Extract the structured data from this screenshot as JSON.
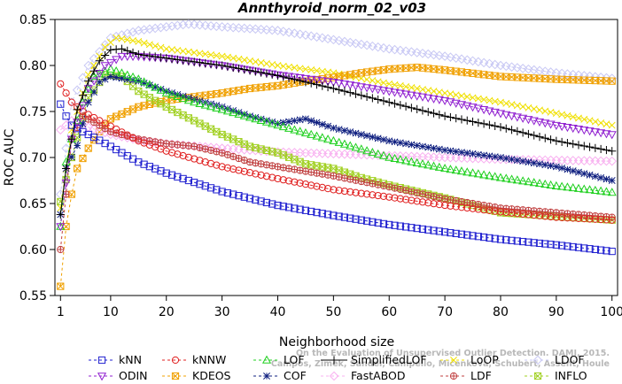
{
  "chart_data": {
    "type": "line",
    "title": "Annthyroid_norm_02_v03",
    "xlabel": "Neighborhood size",
    "ylabel": "ROC AUC",
    "xlim": [
      0,
      101
    ],
    "ylim": [
      0.55,
      0.85
    ],
    "xticks": [
      "1",
      "10",
      "20",
      "30",
      "40",
      "50",
      "60",
      "70",
      "80",
      "90",
      "100"
    ],
    "yticks": [
      "0.55",
      "0.60",
      "0.65",
      "0.70",
      "0.75",
      "0.80",
      "0.85"
    ],
    "grid": false,
    "legend_position": "bottom",
    "watermark": [
      "Campos, Zimek, Sander, Campello, Micenková, Schubert, Assent, Houle",
      "On the Evaluation of Unsupervised Outlier Detection. DAMI, 2015."
    ],
    "series": [
      {
        "name": "kNN",
        "color": "#2020d0",
        "marker": "square",
        "dash": "3,3",
        "points": [
          [
            1,
            0.758
          ],
          [
            2,
            0.745
          ],
          [
            3,
            0.735
          ],
          [
            5,
            0.728
          ],
          [
            7,
            0.722
          ],
          [
            10,
            0.712
          ],
          [
            15,
            0.695
          ],
          [
            20,
            0.683
          ],
          [
            30,
            0.663
          ],
          [
            40,
            0.648
          ],
          [
            50,
            0.637
          ],
          [
            60,
            0.627
          ],
          [
            70,
            0.619
          ],
          [
            80,
            0.611
          ],
          [
            90,
            0.605
          ],
          [
            100,
            0.598
          ]
        ]
      },
      {
        "name": "kNNW",
        "color": "#e02020",
        "marker": "circle",
        "dash": "3,3",
        "points": [
          [
            1,
            0.78
          ],
          [
            2,
            0.77
          ],
          [
            3,
            0.76
          ],
          [
            5,
            0.75
          ],
          [
            8,
            0.74
          ],
          [
            10,
            0.734
          ],
          [
            15,
            0.718
          ],
          [
            20,
            0.707
          ],
          [
            30,
            0.69
          ],
          [
            40,
            0.677
          ],
          [
            50,
            0.665
          ],
          [
            60,
            0.657
          ],
          [
            70,
            0.648
          ],
          [
            80,
            0.641
          ],
          [
            90,
            0.635
          ],
          [
            100,
            0.632
          ]
        ]
      },
      {
        "name": "LOF",
        "color": "#20d020",
        "marker": "triangle",
        "dash": "3,3",
        "points": [
          [
            1,
            0.625
          ],
          [
            2,
            0.695
          ],
          [
            3,
            0.72
          ],
          [
            5,
            0.76
          ],
          [
            7,
            0.788
          ],
          [
            10,
            0.796
          ],
          [
            15,
            0.785
          ],
          [
            20,
            0.77
          ],
          [
            25,
            0.76
          ],
          [
            30,
            0.752
          ],
          [
            40,
            0.735
          ],
          [
            50,
            0.718
          ],
          [
            60,
            0.7
          ],
          [
            70,
            0.688
          ],
          [
            80,
            0.678
          ],
          [
            90,
            0.669
          ],
          [
            100,
            0.662
          ]
        ]
      },
      {
        "name": "SimplifiedLOF",
        "color": "#000000",
        "marker": "plus",
        "dash": "",
        "points": [
          [
            1,
            0.638
          ],
          [
            2,
            0.688
          ],
          [
            4,
            0.752
          ],
          [
            6,
            0.783
          ],
          [
            8,
            0.805
          ],
          [
            10,
            0.817
          ],
          [
            12,
            0.818
          ],
          [
            15,
            0.812
          ],
          [
            20,
            0.808
          ],
          [
            30,
            0.8
          ],
          [
            40,
            0.789
          ],
          [
            50,
            0.775
          ],
          [
            60,
            0.76
          ],
          [
            70,
            0.745
          ],
          [
            80,
            0.733
          ],
          [
            90,
            0.718
          ],
          [
            100,
            0.707
          ]
        ]
      },
      {
        "name": "LoOP",
        "color": "#f0e000",
        "marker": "cross",
        "dash": "3,3",
        "points": [
          [
            1,
            0.645
          ],
          [
            3,
            0.73
          ],
          [
            6,
            0.79
          ],
          [
            9,
            0.82
          ],
          [
            11,
            0.83
          ],
          [
            15,
            0.826
          ],
          [
            20,
            0.818
          ],
          [
            30,
            0.81
          ],
          [
            40,
            0.8
          ],
          [
            50,
            0.792
          ],
          [
            60,
            0.78
          ],
          [
            70,
            0.77
          ],
          [
            80,
            0.76
          ],
          [
            90,
            0.748
          ],
          [
            100,
            0.735
          ]
        ]
      },
      {
        "name": "LDOF",
        "color": "#c8c8f4",
        "marker": "diamond",
        "dash": "3,3",
        "points": [
          [
            1,
            0.66
          ],
          [
            3,
            0.76
          ],
          [
            6,
            0.8
          ],
          [
            10,
            0.83
          ],
          [
            15,
            0.838
          ],
          [
            20,
            0.842
          ],
          [
            24,
            0.845
          ],
          [
            30,
            0.842
          ],
          [
            40,
            0.838
          ],
          [
            50,
            0.828
          ],
          [
            60,
            0.818
          ],
          [
            70,
            0.81
          ],
          [
            80,
            0.8
          ],
          [
            90,
            0.792
          ],
          [
            100,
            0.786
          ]
        ]
      },
      {
        "name": "ODIN",
        "color": "#9020d0",
        "marker": "triangle-down",
        "dash": "3,3",
        "points": [
          [
            1,
            0.625
          ],
          [
            3,
            0.72
          ],
          [
            6,
            0.775
          ],
          [
            9,
            0.8
          ],
          [
            12,
            0.81
          ],
          [
            15,
            0.81
          ],
          [
            20,
            0.808
          ],
          [
            30,
            0.8
          ],
          [
            40,
            0.79
          ],
          [
            50,
            0.782
          ],
          [
            60,
            0.772
          ],
          [
            70,
            0.762
          ],
          [
            80,
            0.748
          ],
          [
            90,
            0.735
          ],
          [
            100,
            0.725
          ]
        ]
      },
      {
        "name": "KDEOS",
        "color": "#f0a000",
        "marker": "square-x",
        "dash": "3,3",
        "points": [
          [
            1,
            0.56
          ],
          [
            2,
            0.625
          ],
          [
            3,
            0.66
          ],
          [
            4,
            0.688
          ],
          [
            6,
            0.71
          ],
          [
            8,
            0.728
          ],
          [
            10,
            0.742
          ],
          [
            15,
            0.755
          ],
          [
            20,
            0.762
          ],
          [
            30,
            0.77
          ],
          [
            35,
            0.775
          ],
          [
            40,
            0.778
          ],
          [
            45,
            0.783
          ],
          [
            50,
            0.787
          ],
          [
            55,
            0.792
          ],
          [
            60,
            0.796
          ],
          [
            65,
            0.798
          ],
          [
            70,
            0.795
          ],
          [
            80,
            0.788
          ],
          [
            90,
            0.785
          ],
          [
            100,
            0.783
          ]
        ]
      },
      {
        "name": "COF",
        "color": "#102080",
        "marker": "asterisk",
        "dash": "3,3",
        "points": [
          [
            1,
            0.638
          ],
          [
            2,
            0.688
          ],
          [
            4,
            0.713
          ],
          [
            6,
            0.76
          ],
          [
            8,
            0.782
          ],
          [
            10,
            0.788
          ],
          [
            15,
            0.783
          ],
          [
            20,
            0.772
          ],
          [
            25,
            0.763
          ],
          [
            30,
            0.755
          ],
          [
            35,
            0.745
          ],
          [
            40,
            0.737
          ],
          [
            45,
            0.742
          ],
          [
            50,
            0.732
          ],
          [
            55,
            0.725
          ],
          [
            60,
            0.718
          ],
          [
            70,
            0.708
          ],
          [
            80,
            0.7
          ],
          [
            90,
            0.69
          ],
          [
            100,
            0.675
          ]
        ]
      },
      {
        "name": "FastABOD",
        "color": "#f8b0f0",
        "marker": "diamond",
        "dash": "3,3",
        "points": [
          [
            1,
            0.73
          ],
          [
            3,
            0.74
          ],
          [
            6,
            0.733
          ],
          [
            10,
            0.725
          ],
          [
            15,
            0.719
          ],
          [
            20,
            0.715
          ],
          [
            30,
            0.71
          ],
          [
            40,
            0.706
          ],
          [
            50,
            0.704
          ],
          [
            60,
            0.702
          ],
          [
            70,
            0.7
          ],
          [
            80,
            0.698
          ],
          [
            90,
            0.697
          ],
          [
            100,
            0.696
          ]
        ]
      },
      {
        "name": "LDF",
        "color": "#c04040",
        "marker": "circle-plus",
        "dash": "3,3",
        "points": [
          [
            1,
            0.6
          ],
          [
            2,
            0.66
          ],
          [
            3,
            0.72
          ],
          [
            5,
            0.745
          ],
          [
            8,
            0.735
          ],
          [
            10,
            0.728
          ],
          [
            15,
            0.72
          ],
          [
            20,
            0.715
          ],
          [
            25,
            0.712
          ],
          [
            30,
            0.705
          ],
          [
            35,
            0.695
          ],
          [
            40,
            0.69
          ],
          [
            50,
            0.68
          ],
          [
            60,
            0.668
          ],
          [
            70,
            0.655
          ],
          [
            80,
            0.645
          ],
          [
            90,
            0.64
          ],
          [
            100,
            0.635
          ]
        ]
      },
      {
        "name": "INFLO",
        "color": "#a0d020",
        "marker": "square-x",
        "dash": "3,3",
        "points": [
          [
            1,
            0.652
          ],
          [
            3,
            0.7
          ],
          [
            6,
            0.765
          ],
          [
            9,
            0.79
          ],
          [
            12,
            0.788
          ],
          [
            15,
            0.772
          ],
          [
            20,
            0.755
          ],
          [
            25,
            0.74
          ],
          [
            30,
            0.725
          ],
          [
            35,
            0.712
          ],
          [
            40,
            0.705
          ],
          [
            45,
            0.693
          ],
          [
            50,
            0.688
          ],
          [
            55,
            0.678
          ],
          [
            60,
            0.67
          ],
          [
            70,
            0.656
          ],
          [
            80,
            0.64
          ],
          [
            90,
            0.636
          ],
          [
            100,
            0.632
          ]
        ]
      }
    ]
  }
}
